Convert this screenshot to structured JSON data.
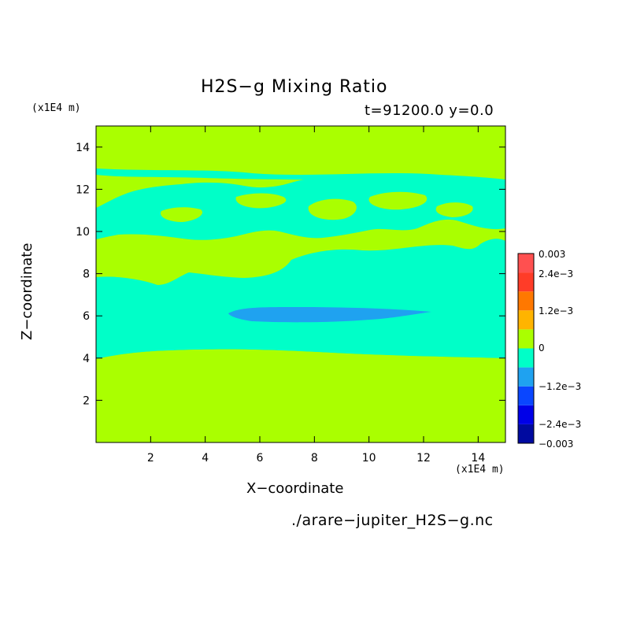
{
  "chart_data": {
    "type": "heatmap",
    "title": "H2S−g Mixing Ratio",
    "subtitle": "t=91200.0 y=0.0",
    "xlabel": "X−coordinate",
    "ylabel": "Z−coordinate",
    "x_unit": "(x1E4 m)",
    "y_unit": "(x1E4 m)",
    "xlim": [
      0,
      15
    ],
    "ylim": [
      0,
      15
    ],
    "x_ticks": [
      2,
      4,
      6,
      8,
      10,
      12,
      14
    ],
    "y_ticks": [
      2,
      4,
      6,
      8,
      10,
      12,
      14
    ],
    "filename": "./arare−jupiter_H2S−g.nc",
    "colorbar": {
      "colors": [
        "#000aa0",
        "#0000e8",
        "#0a46ff",
        "#1fa2f0",
        "#00ffc8",
        "#aaff00",
        "#ffb400",
        "#ff7800",
        "#ff3c28",
        "#ff5050"
      ],
      "tick_labels": [
        "0.003",
        "2.4e−3",
        "1.2e−3",
        "0",
        "−1.2e−3",
        "−2.4e−3",
        "−0.003"
      ]
    },
    "regions": [
      {
        "level": "0 to 0.6e-3",
        "color": "#aaff00",
        "description": "z above ~12.6"
      },
      {
        "level": "-0.6e-3 to 0",
        "color": "#00ffc8",
        "description": "band z ~4 to ~12.6"
      },
      {
        "level": "-1.2e-3 to -0.6e-3",
        "color": "#1fa2f0",
        "description": "lens x ~5 to ~12.2, z ~5.9 to ~6.4"
      },
      {
        "level": "0 to 0.6e-3",
        "color": "#aaff00",
        "description": "z below ~4"
      }
    ]
  }
}
